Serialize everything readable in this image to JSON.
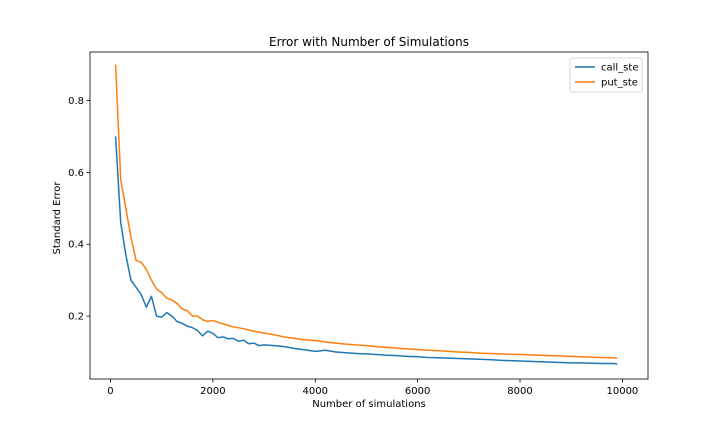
{
  "chart_data": {
    "type": "line",
    "title": "Error with Number of Simulations",
    "xlabel": "Number of simulations",
    "ylabel": "Standard Error",
    "xlim": [
      -400,
      10500
    ],
    "ylim": [
      0.025,
      0.935
    ],
    "xticks": [
      0,
      2000,
      4000,
      6000,
      8000,
      10000
    ],
    "yticks": [
      0.2,
      0.4,
      0.6,
      0.8
    ],
    "xtick_labels": [
      "0",
      "2000",
      "4000",
      "6000",
      "8000",
      "10000"
    ],
    "ytick_labels": [
      "0.2",
      "0.4",
      "0.6",
      "0.8"
    ],
    "grid": false,
    "legend": "top-right",
    "series": [
      {
        "name": "call_ste",
        "color": "#1f77b4",
        "x": [
          100,
          200,
          300,
          400,
          500,
          600,
          700,
          800,
          900,
          1000,
          1100,
          1200,
          1300,
          1400,
          1500,
          1600,
          1700,
          1800,
          1900,
          2000,
          2100,
          2200,
          2300,
          2400,
          2500,
          2600,
          2700,
          2800,
          2900,
          3000,
          3200,
          3400,
          3600,
          3800,
          4000,
          4200,
          4400,
          4600,
          4800,
          5000,
          5200,
          5400,
          5600,
          5800,
          6000,
          6200,
          6400,
          6600,
          6800,
          7000,
          7200,
          7400,
          7600,
          7800,
          8000,
          8200,
          8400,
          8600,
          8800,
          9000,
          9200,
          9400,
          9600,
          9800,
          9900
        ],
        "y": [
          0.7,
          0.46,
          0.37,
          0.3,
          0.28,
          0.26,
          0.225,
          0.255,
          0.2,
          0.197,
          0.21,
          0.2,
          0.185,
          0.18,
          0.172,
          0.168,
          0.16,
          0.145,
          0.158,
          0.152,
          0.14,
          0.142,
          0.137,
          0.138,
          0.13,
          0.133,
          0.123,
          0.125,
          0.118,
          0.12,
          0.118,
          0.115,
          0.11,
          0.106,
          0.102,
          0.105,
          0.1,
          0.098,
          0.096,
          0.095,
          0.093,
          0.091,
          0.09,
          0.088,
          0.087,
          0.085,
          0.084,
          0.083,
          0.082,
          0.081,
          0.08,
          0.079,
          0.077,
          0.076,
          0.075,
          0.074,
          0.073,
          0.072,
          0.071,
          0.07,
          0.07,
          0.069,
          0.068,
          0.068,
          0.067
        ]
      },
      {
        "name": "put_ste",
        "color": "#ff7f0e",
        "x": [
          100,
          200,
          300,
          400,
          500,
          600,
          700,
          800,
          900,
          1000,
          1100,
          1200,
          1300,
          1400,
          1500,
          1600,
          1700,
          1800,
          1900,
          2000,
          2200,
          2400,
          2600,
          2800,
          3000,
          3200,
          3400,
          3600,
          3800,
          4000,
          4200,
          4400,
          4600,
          4800,
          5000,
          5200,
          5400,
          5600,
          5800,
          6000,
          6200,
          6400,
          6600,
          6800,
          7000,
          7200,
          7400,
          7600,
          7800,
          8000,
          8200,
          8400,
          8600,
          8800,
          9000,
          9200,
          9400,
          9600,
          9800,
          9900
        ],
        "y": [
          0.9,
          0.58,
          0.5,
          0.42,
          0.355,
          0.35,
          0.33,
          0.3,
          0.275,
          0.265,
          0.25,
          0.245,
          0.235,
          0.22,
          0.215,
          0.2,
          0.2,
          0.19,
          0.185,
          0.188,
          0.178,
          0.17,
          0.165,
          0.158,
          0.153,
          0.148,
          0.142,
          0.138,
          0.134,
          0.132,
          0.128,
          0.125,
          0.122,
          0.12,
          0.118,
          0.115,
          0.113,
          0.111,
          0.109,
          0.107,
          0.105,
          0.104,
          0.102,
          0.1,
          0.099,
          0.097,
          0.096,
          0.095,
          0.094,
          0.093,
          0.092,
          0.091,
          0.09,
          0.089,
          0.088,
          0.087,
          0.086,
          0.085,
          0.084,
          0.083
        ]
      }
    ]
  }
}
